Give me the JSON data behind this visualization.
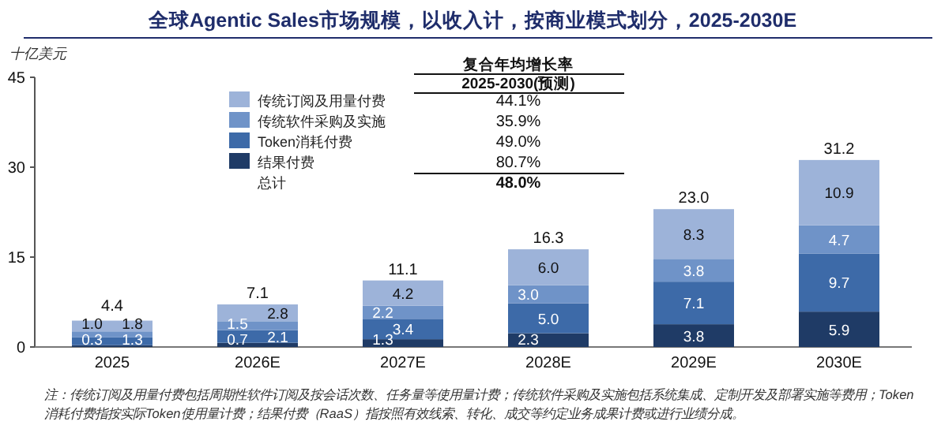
{
  "chart_data": {
    "type": "bar",
    "stacked": true,
    "title": "全球Agentic Sales市场规模，以收入计，按商业模式划分，2025-2030E",
    "ylabel": "十亿美元",
    "categories": [
      "2025",
      "2026E",
      "2027E",
      "2028E",
      "2029E",
      "2030E"
    ],
    "ylim": [
      0,
      45
    ],
    "yticks": [
      0,
      15,
      30,
      45
    ],
    "legend": "top",
    "totals": [
      "4.4",
      "7.1",
      "11.1",
      "16.3",
      "23.0",
      "31.2"
    ],
    "series": [
      {
        "name": "结果付费",
        "color": "#1f3b66",
        "values": [
          0.3,
          0.7,
          1.3,
          2.3,
          3.8,
          5.9
        ],
        "value_labels": [
          "0.3",
          "0.7",
          "1.3",
          "2.3",
          "3.8",
          "5.9"
        ]
      },
      {
        "name": "Token消耗付费",
        "color": "#3d6aa8",
        "values": [
          1.3,
          2.1,
          3.4,
          5.0,
          7.1,
          9.7
        ],
        "value_labels": [
          "1.3",
          "2.1",
          "3.4",
          "5.0",
          "7.1",
          "9.7"
        ]
      },
      {
        "name": "传统软件采购及实施",
        "color": "#6f93c8",
        "values": [
          1.0,
          1.5,
          2.2,
          3.0,
          3.8,
          4.7
        ],
        "value_labels": [
          "1.0",
          "1.5",
          "2.2",
          "3.0",
          "3.8",
          "4.7"
        ]
      },
      {
        "name": "传统订阅及用量付费",
        "color": "#9db3d9",
        "values": [
          1.8,
          2.8,
          4.2,
          6.0,
          8.3,
          10.9
        ],
        "value_labels": [
          "1.8",
          "2.8",
          "4.2",
          "6.0",
          "8.3",
          "10.9"
        ]
      }
    ],
    "annotations": [
      "复合年均增长率",
      "2025-2030(预测)",
      "44.1%",
      "35.9%",
      "49.0%",
      "80.7%",
      "总计",
      "48.0%",
      "注：传统订阅及用量付费包括周期性软件订阅及按会话次数、任务量等使用量计费；传统软件采购及实施包括系统集成、定制开发及部署实施等费用；Token消耗付费指按实际Token使用量计费；结果付费（RaaS）指按照有效线索、转化、成交等约定业务成果计费或进行业绩分成。"
    ]
  }
}
